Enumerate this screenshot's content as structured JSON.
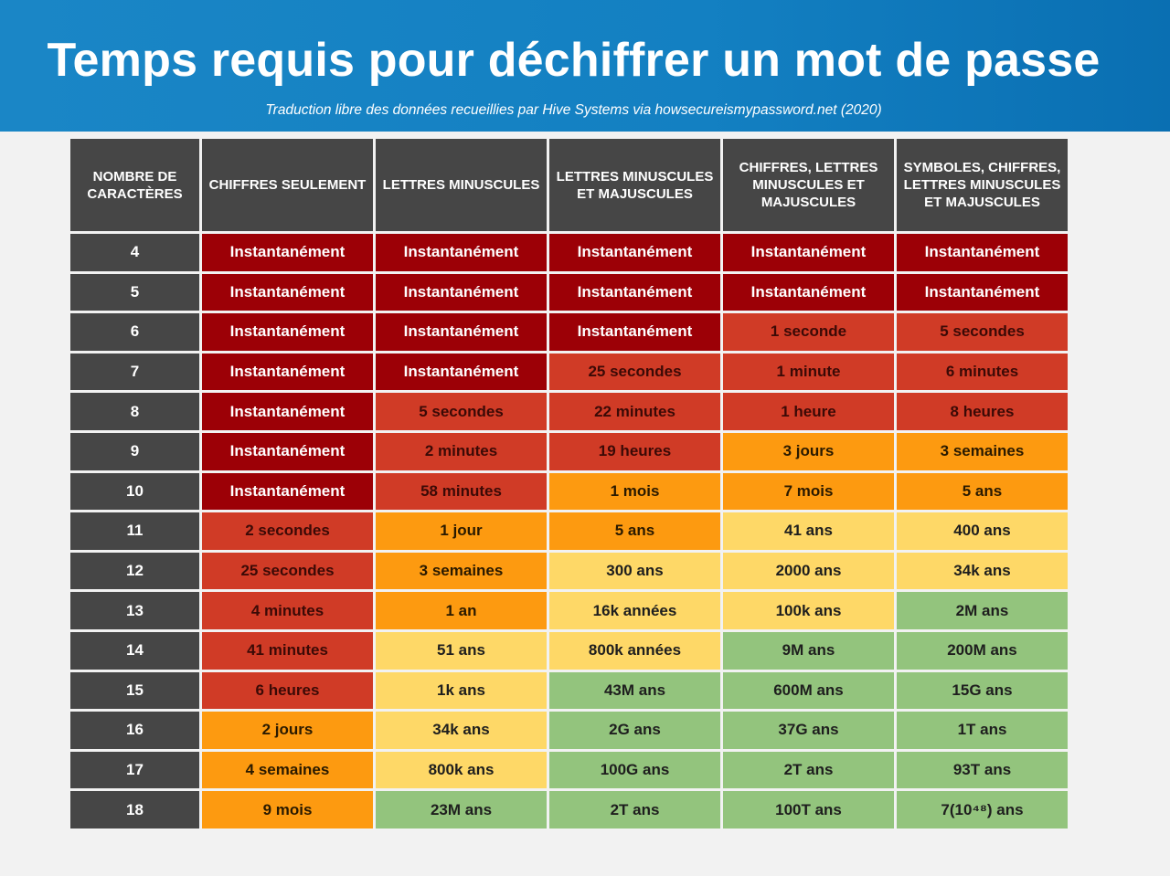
{
  "header": {
    "title": "Temps requis pour déchiffrer un mot de passe",
    "subtitle": "Traduction libre des données recueillies par Hive Systems via howsecureismypassword.net (2020)"
  },
  "colors": {
    "header_bg": "#1380c2",
    "level_0": "#9c0006",
    "level_1": "#d03b26",
    "level_2": "#fd9a10",
    "level_3": "#fed867",
    "level_4": "#93c47d",
    "column_header_bg": "#464646"
  },
  "table": {
    "columns": [
      "NOMBRE DE CARACTÈRES",
      "CHIFFRES SEULEMENT",
      "LETTRES MINUSCULES",
      "LETTRES MINUSCULES ET MAJUSCULES",
      "CHIFFRES, LETTRES MINUSCULES ET MAJUSCULES",
      "SYMBOLES, CHIFFRES, LETTRES MINUSCULES ET MAJUSCULES"
    ],
    "rows": [
      {
        "chars": "4",
        "values": [
          "Instantanément",
          "Instantanément",
          "Instantanément",
          "Instantanément",
          "Instantanément"
        ],
        "levels": [
          0,
          0,
          0,
          0,
          0
        ]
      },
      {
        "chars": "5",
        "values": [
          "Instantanément",
          "Instantanément",
          "Instantanément",
          "Instantanément",
          "Instantanément"
        ],
        "levels": [
          0,
          0,
          0,
          0,
          0
        ]
      },
      {
        "chars": "6",
        "values": [
          "Instantanément",
          "Instantanément",
          "Instantanément",
          "1 seconde",
          "5 secondes"
        ],
        "levels": [
          0,
          0,
          0,
          1,
          1
        ]
      },
      {
        "chars": "7",
        "values": [
          "Instantanément",
          "Instantanément",
          "25 secondes",
          "1 minute",
          "6 minutes"
        ],
        "levels": [
          0,
          0,
          1,
          1,
          1
        ]
      },
      {
        "chars": "8",
        "values": [
          "Instantanément",
          "5 secondes",
          "22 minutes",
          "1 heure",
          "8 heures"
        ],
        "levels": [
          0,
          1,
          1,
          1,
          1
        ]
      },
      {
        "chars": "9",
        "values": [
          "Instantanément",
          "2 minutes",
          "19 heures",
          "3 jours",
          "3 semaines"
        ],
        "levels": [
          0,
          1,
          1,
          2,
          2
        ]
      },
      {
        "chars": "10",
        "values": [
          "Instantanément",
          "58 minutes",
          "1 mois",
          "7 mois",
          "5 ans"
        ],
        "levels": [
          0,
          1,
          2,
          2,
          2
        ]
      },
      {
        "chars": "11",
        "values": [
          "2 secondes",
          "1 jour",
          "5 ans",
          "41 ans",
          "400 ans"
        ],
        "levels": [
          1,
          2,
          2,
          3,
          3
        ]
      },
      {
        "chars": "12",
        "values": [
          "25 secondes",
          "3 semaines",
          "300 ans",
          "2000 ans",
          "34k ans"
        ],
        "levels": [
          1,
          2,
          3,
          3,
          3
        ]
      },
      {
        "chars": "13",
        "values": [
          "4 minutes",
          "1 an",
          "16k années",
          "100k ans",
          "2M ans"
        ],
        "levels": [
          1,
          2,
          3,
          3,
          4
        ]
      },
      {
        "chars": "14",
        "values": [
          "41 minutes",
          "51 ans",
          "800k années",
          "9M ans",
          "200M ans"
        ],
        "levels": [
          1,
          3,
          3,
          4,
          4
        ]
      },
      {
        "chars": "15",
        "values": [
          "6 heures",
          "1k ans",
          "43M ans",
          "600M ans",
          "15G ans"
        ],
        "levels": [
          1,
          3,
          4,
          4,
          4
        ]
      },
      {
        "chars": "16",
        "values": [
          "2 jours",
          "34k ans",
          "2G ans",
          "37G ans",
          "1T ans"
        ],
        "levels": [
          2,
          3,
          4,
          4,
          4
        ]
      },
      {
        "chars": "17",
        "values": [
          "4 semaines",
          "800k ans",
          "100G ans",
          "2T ans",
          "93T ans"
        ],
        "levels": [
          2,
          3,
          4,
          4,
          4
        ]
      },
      {
        "chars": "18",
        "values": [
          "9 mois",
          "23M ans",
          "2T ans",
          "100T ans",
          "7(10⁴⁸) ans"
        ],
        "levels": [
          2,
          4,
          4,
          4,
          4
        ]
      }
    ]
  }
}
